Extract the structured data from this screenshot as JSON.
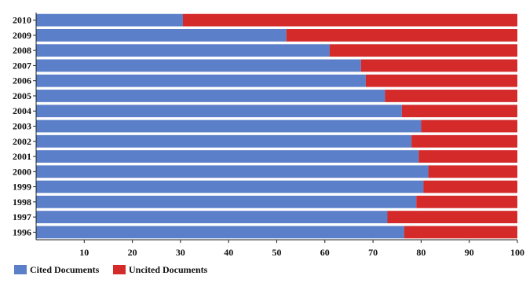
{
  "chart_data": {
    "type": "bar",
    "orientation": "horizontal",
    "stacked": true,
    "categories": [
      "2010",
      "2009",
      "2008",
      "2007",
      "2006",
      "2005",
      "2004",
      "2003",
      "2002",
      "2001",
      "2000",
      "1999",
      "1998",
      "1997",
      "1996"
    ],
    "series": [
      {
        "name": "Cited Documents",
        "color": "#5b7fc8",
        "values": [
          30.5,
          52,
          61,
          67.5,
          68.5,
          72.5,
          76,
          80,
          78,
          79.5,
          81.5,
          80.5,
          79,
          73,
          76.5
        ]
      },
      {
        "name": "Uncited Documents",
        "color": "#d42a2a",
        "values": [
          69.5,
          48,
          39,
          32.5,
          31.5,
          27.5,
          24,
          20,
          22,
          20.5,
          18.5,
          19.5,
          21,
          27,
          23.5
        ]
      }
    ],
    "xlim": [
      0,
      100
    ],
    "xticks": [
      10,
      20,
      30,
      40,
      50,
      60,
      70,
      80,
      90,
      100
    ],
    "grid": false,
    "legend_position": "bottom-left"
  }
}
